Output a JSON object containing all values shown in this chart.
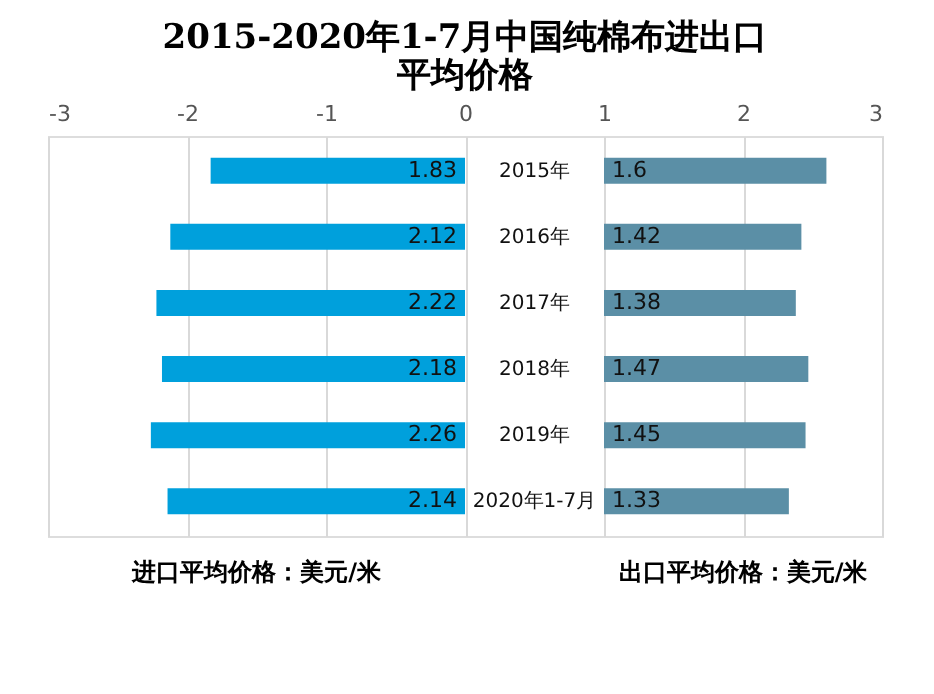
{
  "chart_data": {
    "type": "bar",
    "orientation": "horizontal",
    "title": [
      "2015-2020年1-7月中国纯棉布进出口",
      "平均价格"
    ],
    "categories": [
      "2015年",
      "2016年",
      "2017年",
      "2018年",
      "2019年",
      "2020年1-7月"
    ],
    "series": [
      {
        "name": "进口平均价格：美元/米",
        "color": "#00a0dc",
        "base": [
          0,
          0,
          0,
          0,
          0,
          0
        ],
        "values": [
          -1.83,
          -2.12,
          -2.22,
          -2.18,
          -2.26,
          -2.14
        ],
        "value_labels": [
          "1.83",
          "2.12",
          "2.22",
          "2.18",
          "2.26",
          "2.14"
        ]
      },
      {
        "name": "出口平均价格：美元/米",
        "color": "#5b8fa6",
        "base": [
          1,
          1,
          1,
          1,
          1,
          1
        ],
        "values": [
          1.6,
          1.42,
          1.38,
          1.47,
          1.45,
          1.33
        ],
        "value_labels": [
          "1.6",
          "1.42",
          "1.38",
          "1.47",
          "1.45",
          "1.33"
        ]
      }
    ],
    "xlim": [
      -3,
      3
    ],
    "xticks": [
      -3,
      -2,
      -1,
      0,
      1,
      2,
      3
    ],
    "grid": "x",
    "legend": "bottom"
  }
}
